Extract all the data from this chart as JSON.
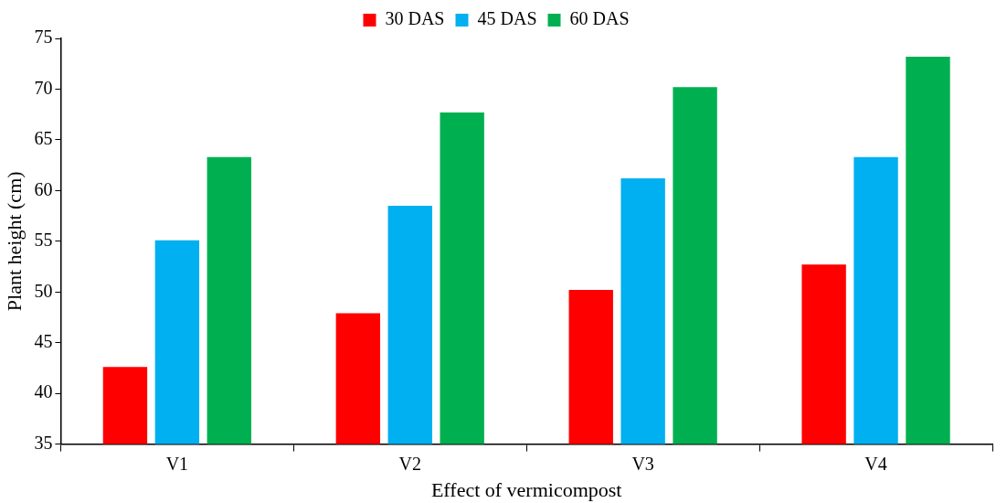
{
  "chart_data": {
    "type": "bar",
    "xlabel": "Effect of vermicompost",
    "ylabel": "Plant height (cm)",
    "categories": [
      "V1",
      "V2",
      "V3",
      "V4"
    ],
    "series": [
      {
        "name": "30 DAS",
        "color": "#ff0000",
        "values": [
          42.6,
          47.9,
          50.2,
          52.7
        ]
      },
      {
        "name": "45 DAS",
        "color": "#00b0f0",
        "values": [
          55.1,
          58.5,
          61.2,
          63.3
        ]
      },
      {
        "name": "60 DAS",
        "color": "#00b050",
        "values": [
          63.3,
          67.7,
          70.2,
          73.2
        ]
      }
    ],
    "ylim": [
      35,
      75
    ],
    "yticks": [
      35,
      40,
      45,
      50,
      55,
      60,
      65,
      70,
      75
    ],
    "grid": false,
    "legend": "top"
  }
}
